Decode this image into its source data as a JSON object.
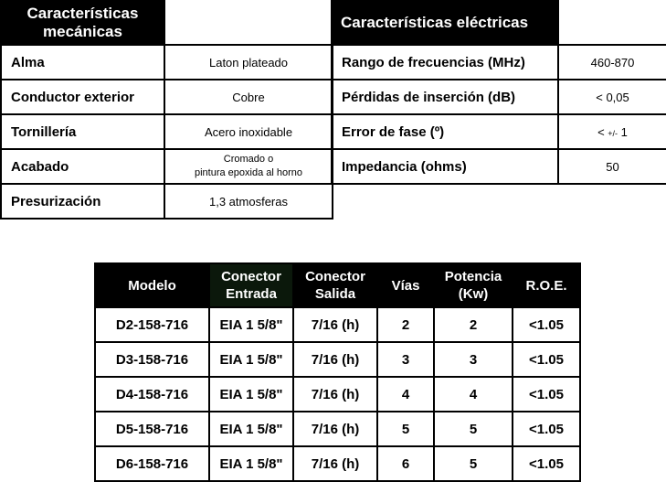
{
  "mechanical": {
    "title_line1": "Características",
    "title_line2": "mecánicas",
    "rows": [
      {
        "label": "Alma",
        "value": "Laton plateado"
      },
      {
        "label": "Conductor exterior",
        "value": "Cobre"
      },
      {
        "label": "Tornillería",
        "value": "Acero inoxidable"
      },
      {
        "label": "Acabado",
        "value_line1": "Cromado o",
        "value_line2": "pintura epoxida al horno"
      },
      {
        "label": "Presurización",
        "value": "1,3 atmosferas"
      }
    ]
  },
  "electrical": {
    "title": "Características eléctricas",
    "rows": [
      {
        "label": "Rango de frecuencias (MHz)",
        "value": "460-870"
      },
      {
        "label": "Pérdidas de inserción (dB)",
        "value": "< 0,05"
      },
      {
        "label": "Error de fase (º)",
        "value_prefix": "< ",
        "value_small": "+/-",
        "value_suffix": " 1"
      },
      {
        "label": "Impedancia (ohms)",
        "value": "50"
      }
    ]
  },
  "models": {
    "headers": [
      {
        "line1": "Modelo"
      },
      {
        "line1": "Conector",
        "line2": "Entrada"
      },
      {
        "line1": "Conector",
        "line2": "Salida"
      },
      {
        "line1": "Vías"
      },
      {
        "line1": "Potencia",
        "line2": "(Kw)"
      },
      {
        "line1": "R.O.E."
      }
    ],
    "rows": [
      [
        "D2-158-716",
        "EIA 1 5/8\"",
        "7/16 (h)",
        "2",
        "2",
        "<1.05"
      ],
      [
        "D3-158-716",
        "EIA 1 5/8\"",
        "7/16 (h)",
        "3",
        "3",
        "<1.05"
      ],
      [
        "D4-158-716",
        "EIA 1 5/8\"",
        "7/16 (h)",
        "4",
        "4",
        "<1.05"
      ],
      [
        "D5-158-716",
        "EIA 1 5/8\"",
        "7/16 (h)",
        "5",
        "5",
        "<1.05"
      ],
      [
        "D6-158-716",
        "EIA 1 5/8\"",
        "7/16 (h)",
        "6",
        "5",
        "<1.05"
      ]
    ]
  }
}
